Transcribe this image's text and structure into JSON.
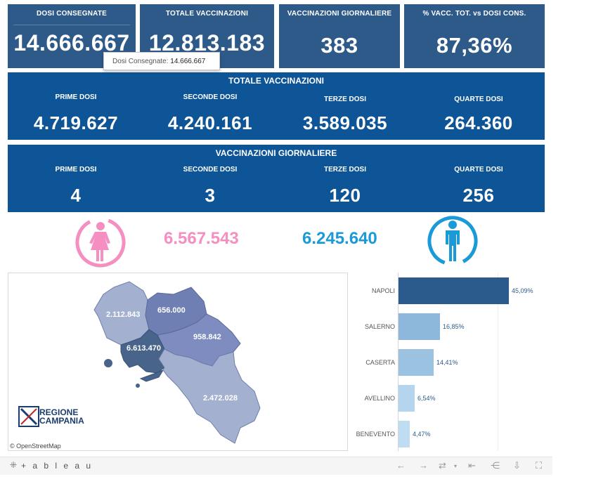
{
  "kpis": [
    {
      "label": "DOSI  CONSEGNATE",
      "value": "14.666.667"
    },
    {
      "label": "TOTALE VACCINAZIONI",
      "value": "12.813.183"
    },
    {
      "label": "VACCINAZIONI GIORNALIERE",
      "value": "383"
    },
    {
      "label": "% VACC. TOT. vs DOSI CONS.",
      "value": "87,36%"
    }
  ],
  "tooltip": {
    "label": "Dosi Consegnate:",
    "value": "14.666.667"
  },
  "totale": {
    "title": "TOTALE VACCINAZIONI",
    "cols": [
      {
        "label": "PRIME DOSI",
        "value": "4.719.627"
      },
      {
        "label": "SECONDE DOSI",
        "value": "4.240.161"
      },
      {
        "label": "TERZE DOSI",
        "value": "3.589.035"
      },
      {
        "label": "QUARTE DOSI",
        "value": "264.360"
      }
    ]
  },
  "giornaliere": {
    "title": "VACCINAZIONI GIORNALIERE",
    "cols": [
      {
        "label": "PRIME DOSI",
        "value": "4"
      },
      {
        "label": "SECONDE DOSI",
        "value": "3"
      },
      {
        "label": "TERZE DOSI",
        "value": "120"
      },
      {
        "label": "QUARTE DOSI",
        "value": "256"
      }
    ]
  },
  "gender": {
    "female": {
      "value": "6.567.543",
      "color": "#f58fc2",
      "icon": "female-icon"
    },
    "male": {
      "value": "6.245.640",
      "color": "#1a9ad6",
      "icon": "male-icon"
    }
  },
  "map": {
    "provinces": [
      {
        "name": "Caserta",
        "value": "2.112.843"
      },
      {
        "name": "Benevento",
        "value": "656.000"
      },
      {
        "name": "Napoli",
        "value": "6.613.470"
      },
      {
        "name": "Avellino",
        "value": "958.842"
      },
      {
        "name": "Salerno",
        "value": "2.472.028"
      }
    ],
    "logo_line1": "REGIONE",
    "logo_line2": "CAMPANIA",
    "attribution": "© OpenStreetMap"
  },
  "chart_data": {
    "type": "bar",
    "orientation": "horizontal",
    "categories": [
      "NAPOLI",
      "SALERNO",
      "CASERTA",
      "AVELLINO",
      "BENEVENTO"
    ],
    "values": [
      45.09,
      16.85,
      14.41,
      6.54,
      4.47
    ],
    "labels": [
      "45,09%",
      "16,85%",
      "14,41%",
      "6,54%",
      "4,47%"
    ],
    "colors": [
      "#2b5a8c",
      "#8db8dc",
      "#9cc2e2",
      "#b5d5ef",
      "#bedcf2"
    ],
    "xlim": [
      0,
      46
    ]
  },
  "footer": {
    "brand": "+ a b l e a u"
  }
}
